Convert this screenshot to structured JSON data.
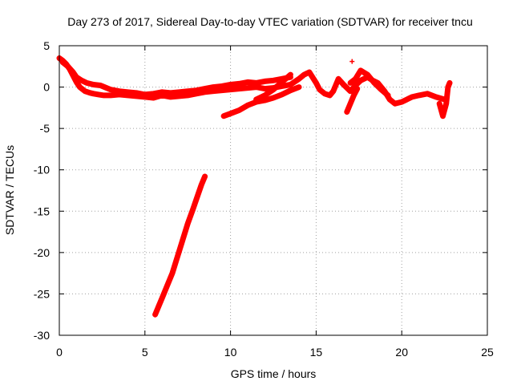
{
  "chart_data": {
    "type": "scatter",
    "title": "Day 273 of 2017, Sidereal Day-to-day VTEC variation (SDTVAR) for receiver tncu",
    "xlabel": "GPS time / hours",
    "ylabel": "SDTVAR / TECUs",
    "xlim": [
      0,
      25
    ],
    "ylim": [
      -30,
      5
    ],
    "xticks": [
      0,
      5,
      10,
      15,
      20,
      25
    ],
    "yticks": [
      5,
      0,
      -5,
      -10,
      -15,
      -20,
      -25,
      -30
    ],
    "grid": true,
    "marker": "+",
    "color": "#ff0000",
    "series": [
      {
        "name": "main trace",
        "x": [
          0.0,
          0.2,
          0.4,
          0.6,
          0.8,
          1.0,
          1.2,
          1.5,
          1.8,
          2.0,
          2.3,
          2.6,
          3.0,
          3.5,
          4.0,
          4.5,
          5.0,
          5.5,
          6.0,
          6.5,
          7.0,
          7.5,
          8.0,
          8.5,
          9.0,
          9.5,
          10.0,
          10.5,
          11.0,
          11.5,
          12.0,
          12.5,
          13.0,
          13.5,
          14.0,
          14.3,
          14.6,
          15.0,
          15.2,
          15.5,
          15.8,
          16.0,
          16.3,
          16.6,
          17.0,
          17.3,
          17.6,
          18.0,
          18.3,
          18.6,
          19.0,
          19.3,
          19.6,
          20.0,
          20.3,
          20.6,
          21.0,
          21.5,
          22.0,
          22.5
        ],
        "y": [
          3.5,
          3.2,
          2.8,
          2.2,
          1.4,
          0.6,
          0.0,
          -0.5,
          -0.7,
          -0.8,
          -0.9,
          -1.0,
          -1.0,
          -0.9,
          -1.0,
          -1.1,
          -1.2,
          -1.3,
          -1.0,
          -1.2,
          -1.1,
          -1.0,
          -0.8,
          -0.6,
          -0.5,
          -0.4,
          -0.3,
          -0.2,
          -0.1,
          0.0,
          -0.2,
          -0.1,
          0.1,
          0.3,
          1.0,
          1.5,
          1.8,
          0.5,
          -0.3,
          -0.8,
          -1.0,
          -0.5,
          1.0,
          0.3,
          -0.5,
          0.2,
          0.8,
          1.2,
          0.8,
          0.5,
          -0.5,
          -1.5,
          -2.0,
          -1.8,
          -1.5,
          -1.2,
          -1.0,
          -0.8,
          -1.2,
          -1.5
        ]
      },
      {
        "name": "upper branch",
        "x": [
          0.2,
          0.5,
          0.8,
          1.0,
          1.3,
          1.6,
          2.0,
          2.4,
          3.0,
          3.5,
          4.0,
          4.5,
          5.0,
          5.5,
          6.0,
          6.5,
          7.0,
          7.5,
          8.0,
          8.5,
          9.0,
          9.5,
          10.0,
          10.5,
          11.0,
          11.5,
          12.0,
          12.5,
          13.0,
          13.5
        ],
        "y": [
          3.0,
          2.5,
          1.8,
          1.2,
          0.8,
          0.5,
          0.3,
          0.2,
          -0.3,
          -0.5,
          -0.6,
          -0.7,
          -0.9,
          -0.8,
          -0.6,
          -0.7,
          -0.6,
          -0.5,
          -0.4,
          -0.2,
          0.0,
          0.1,
          0.3,
          0.4,
          0.6,
          0.5,
          0.7,
          0.8,
          1.0,
          1.2
        ]
      },
      {
        "name": "lower segment 10-14h",
        "x": [
          9.6,
          10.0,
          10.5,
          11.0,
          11.5,
          12.0,
          12.5,
          13.0,
          13.5,
          14.0
        ],
        "y": [
          -3.5,
          -3.2,
          -2.8,
          -2.2,
          -1.8,
          -1.6,
          -1.3,
          -0.9,
          -0.4,
          0.0
        ]
      },
      {
        "name": "diagonal segment 13h",
        "x": [
          11.5,
          12.0,
          12.5,
          13.0,
          13.5
        ],
        "y": [
          -1.5,
          -1.0,
          -0.3,
          0.6,
          1.5
        ]
      },
      {
        "name": "segment 17h",
        "x": [
          16.8,
          17.0,
          17.2,
          17.4
        ],
        "y": [
          -3.0,
          -2.0,
          -1.0,
          -0.2
        ]
      },
      {
        "name": "segment 18h",
        "x": [
          17.0,
          17.3,
          17.6,
          18.0,
          18.4,
          18.8,
          19.2
        ],
        "y": [
          0.5,
          1.0,
          2.0,
          1.5,
          0.5,
          -0.3,
          -1.0
        ]
      },
      {
        "name": "segment 22-23h",
        "x": [
          22.2,
          22.4,
          22.6,
          22.7,
          22.8
        ],
        "y": [
          -2.0,
          -3.5,
          -2.0,
          0.0,
          0.5
        ]
      },
      {
        "name": "steep descent 5.5-8.5h",
        "x": [
          5.6,
          5.8,
          6.0,
          6.3,
          6.6,
          6.9,
          7.2,
          7.5,
          7.8,
          8.1,
          8.3,
          8.5
        ],
        "y": [
          -27.5,
          -26.5,
          -25.5,
          -24.0,
          -22.5,
          -20.5,
          -18.5,
          -16.5,
          -14.8,
          -13.0,
          -11.8,
          -10.8
        ]
      },
      {
        "name": "spike 17h",
        "x": [
          17.1
        ],
        "y": [
          3.1
        ]
      }
    ]
  }
}
